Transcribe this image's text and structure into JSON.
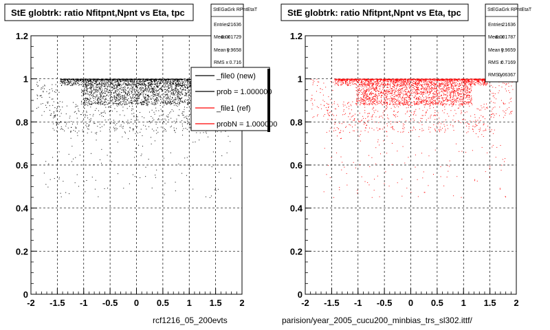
{
  "chart_data": [
    {
      "type": "scatter",
      "title": "StE globtrk: ratio Nfitpnt,Npnt vs Eta, tpc",
      "xlim": [
        -2,
        2
      ],
      "ylim": [
        0,
        1.2
      ],
      "x_ticks": [
        "-2",
        "-1.5",
        "-1",
        "-0.5",
        "0",
        "0.5",
        "1",
        "1.5",
        "2"
      ],
      "y_ticks": [
        "0",
        "0.2",
        "0.4",
        "0.6",
        "0.8",
        "1",
        "1.2"
      ],
      "grid": true,
      "marker_color": "#000000",
      "x_caption": "rcf1216_05_200evts",
      "stats": {
        "name": "StEGaGrk RPntEtaT",
        "rows": [
          {
            "label": "Entries",
            "value": "21636"
          },
          {
            "label": "Mean x",
            "value": "-0.001729"
          },
          {
            "label": "Mean y",
            "value": "0.9658"
          },
          {
            "label": "RMS x",
            "value": "0.716"
          }
        ]
      },
      "legend": {
        "placement": "top-right",
        "entries": [
          {
            "label": "_file0 (new)",
            "color": "#000000"
          },
          {
            "label": "prob = 1.000000",
            "color": "#000000"
          },
          {
            "label": "_file1 (ref)",
            "color": "#ff0000"
          },
          {
            "label": "probN = 1.000000",
            "color": "#ff0000"
          }
        ]
      }
    },
    {
      "type": "scatter",
      "title": "StE globtrk: ratio Nfitpnt,Npnt vs Eta, tpc",
      "xlim": [
        -2,
        2
      ],
      "ylim": [
        0,
        1.2
      ],
      "x_ticks": [
        "-2",
        "-1.5",
        "-1",
        "-0.5",
        "0",
        "0.5",
        "1",
        "1.5",
        "2"
      ],
      "y_ticks": [
        "0",
        "0.2",
        "0.4",
        "0.6",
        "0.8",
        "1",
        "1.2"
      ],
      "grid": true,
      "marker_color": "#ff0000",
      "x_caption": "parision/year_2005_cucu200_minbias_trs_sl302.ittf/",
      "stats": {
        "name": "StEGaGrk RPntEtaT",
        "rows": [
          {
            "label": "Entries",
            "value": "21636"
          },
          {
            "label": "Mean x",
            "value": "-0.001787"
          },
          {
            "label": "Mean y",
            "value": "0.9659"
          },
          {
            "label": "RMS x",
            "value": "0.7169"
          },
          {
            "label": "RMS y",
            "value": "0.06367"
          }
        ]
      }
    }
  ]
}
